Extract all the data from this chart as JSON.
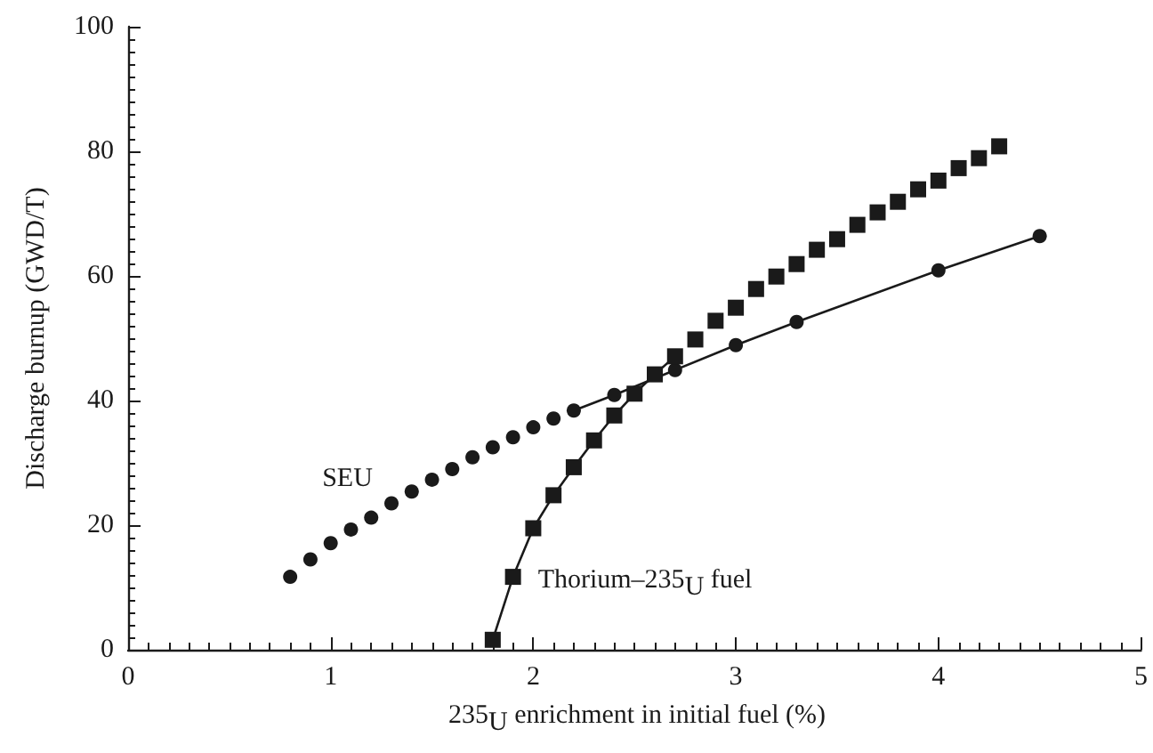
{
  "chart_data": {
    "type": "line",
    "xlabel": "235$_{U}$ enrichment in initial fuel (%)",
    "ylabel": "Discharge burnup (GWD/T)",
    "xlim": [
      0,
      5
    ],
    "xticks": [
      0,
      1,
      2,
      3,
      4,
      5
    ],
    "ylim": [
      0,
      100
    ],
    "yticks": [
      0,
      20,
      40,
      60,
      80,
      100
    ],
    "grid": false,
    "legend": false,
    "series": [
      {
        "type": "scatter",
        "name": "SEU",
        "marker": "circle",
        "color": "#1a1a1a",
        "x": [
          0.8,
          0.9,
          1.0,
          1.1,
          1.2,
          1.3,
          1.4,
          1.5,
          1.6,
          1.7,
          1.8,
          1.9,
          2.0,
          2.1
        ],
        "values": [
          11.7,
          14.5,
          17.1,
          19.3,
          21.2,
          23.5,
          25.4,
          27.3,
          29.0,
          30.9,
          32.5,
          34.1,
          35.7,
          37.1
        ]
      },
      {
        "marker": "circle",
        "color": "#1a1a1a",
        "x": [
          2.2,
          2.4,
          2.7,
          3.0,
          3.3,
          4.0,
          4.5
        ],
        "values": [
          38.4,
          40.9,
          44.9,
          48.9,
          52.6,
          60.9,
          66.4
        ]
      },
      {
        "name": "Thorium–235$_{U}$ fuel",
        "marker": "square",
        "color": "#1a1a1a",
        "x": [
          1.8,
          1.9,
          2.0,
          2.1,
          2.2,
          2.3,
          2.4,
          2.5,
          2.6,
          2.7
        ],
        "values": [
          1.6,
          11.7,
          19.5,
          24.8,
          29.3,
          33.6,
          37.6,
          41.1,
          44.2,
          47.1
        ]
      },
      {
        "type": "scatter",
        "marker": "square",
        "color": "#1a1a1a",
        "x": [
          2.8,
          2.9,
          3.0,
          3.1,
          3.2,
          3.3,
          3.4,
          3.5,
          3.6,
          3.7,
          3.8,
          3.9,
          4.0,
          4.1,
          4.2,
          4.3
        ],
        "values": [
          49.8,
          52.8,
          54.9,
          57.9,
          59.9,
          61.9,
          64.2,
          65.9,
          68.2,
          70.2,
          71.9,
          73.9,
          75.3,
          77.3,
          78.9,
          80.8
        ]
      }
    ]
  }
}
